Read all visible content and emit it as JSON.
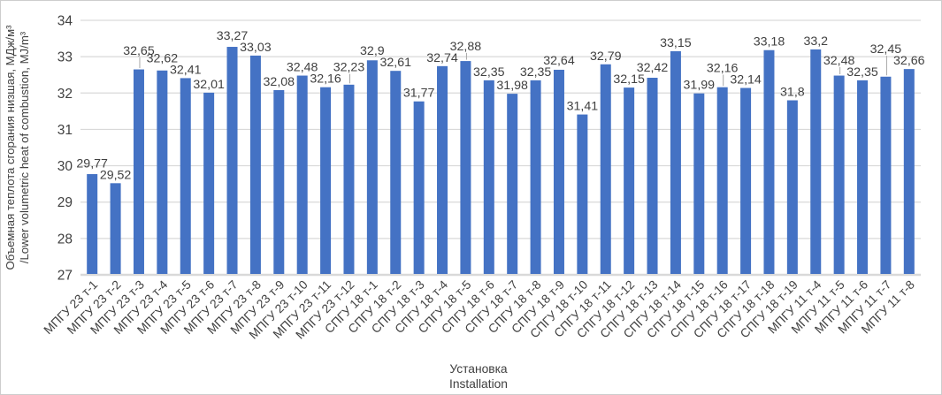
{
  "chart_data": {
    "type": "bar",
    "title": "",
    "categories": [
      "МПГУ 23 т-1",
      "МПГУ 23 т-2",
      "МПГУ 23 т-3",
      "МПГУ 23 т-4",
      "МПГУ 23 т-5",
      "МПГУ 23 т-6",
      "МПГУ 23 т-7",
      "МПГУ 23 т-8",
      "МПГУ 23 т-9",
      "МПГУ 23 т-10",
      "МПГУ 23 т-11",
      "МПГУ 23 т-12",
      "СПГУ 18 т-1",
      "СПГУ 18 т-2",
      "СПГУ 18 т-3",
      "СПГУ 18 т-4",
      "СПГУ 18 т-5",
      "СПГУ 18 т-6",
      "СПГУ 18 т-7",
      "СПГУ 18 т-8",
      "СПГУ 18 т-9",
      "СПГУ 18 т-10",
      "СПГУ 18 т-11",
      "СПГУ 18 т-12",
      "СПГУ 18 т-13",
      "СПГУ 18 т-14",
      "СПГУ 18 т-15",
      "СПГУ 18 т-16",
      "СПГУ 18 т-17",
      "СПГУ 18 т-18",
      "СПГУ 18 т-19",
      "МПГУ 11 т-4",
      "МПГУ 11 т-5",
      "МПГУ 11 т-6",
      "МПГУ 11 т-7",
      "МПГУ 11 т-8"
    ],
    "values": [
      29.77,
      29.52,
      32.65,
      32.62,
      32.41,
      32.01,
      33.27,
      33.03,
      32.08,
      32.48,
      32.16,
      32.23,
      32.9,
      32.61,
      31.77,
      32.74,
      32.88,
      32.35,
      31.98,
      32.35,
      32.64,
      31.41,
      32.79,
      32.15,
      32.42,
      33.15,
      31.99,
      32.16,
      32.14,
      33.18,
      31.8,
      33.2,
      32.48,
      32.35,
      32.45,
      32.66
    ],
    "value_labels": [
      "29,77",
      "29,52",
      "32,65",
      "32,62",
      "32,41",
      "32,01",
      "33,27",
      "33,03",
      "32,08",
      "32,48",
      "32,16",
      "32,23",
      "32,9",
      "32,61",
      "31,77",
      "32,74",
      "32,88",
      "32,35",
      "31,98",
      "32,35",
      "32,64",
      "31,41",
      "32,79",
      "32,15",
      "32,42",
      "33,15",
      "31,99",
      "32,16",
      "32,14",
      "33,18",
      "31,8",
      "33,2",
      "32,48",
      "32,35",
      "32,45",
      "32,66"
    ],
    "xlabel_lines": [
      "Установка",
      "Installation"
    ],
    "ylabel_lines": [
      "Объемная теплота сгорания низшая, МДж/м³",
      "/Lower volumetric heat of combustion, MJ/m³"
    ],
    "ylim": [
      27,
      34
    ],
    "yticks": [
      "27",
      "28",
      "29",
      "30",
      "31",
      "32",
      "33",
      "34"
    ],
    "grid": true,
    "legend": "none",
    "colors": {
      "bar": "#4472C4",
      "gridline": "#D9D9D9",
      "axis_line": "#D9D9D9",
      "text": "#404040",
      "leader_line": "#A6A6A6",
      "background": "#FFFFFF",
      "border": "#CDCDCD"
    }
  }
}
